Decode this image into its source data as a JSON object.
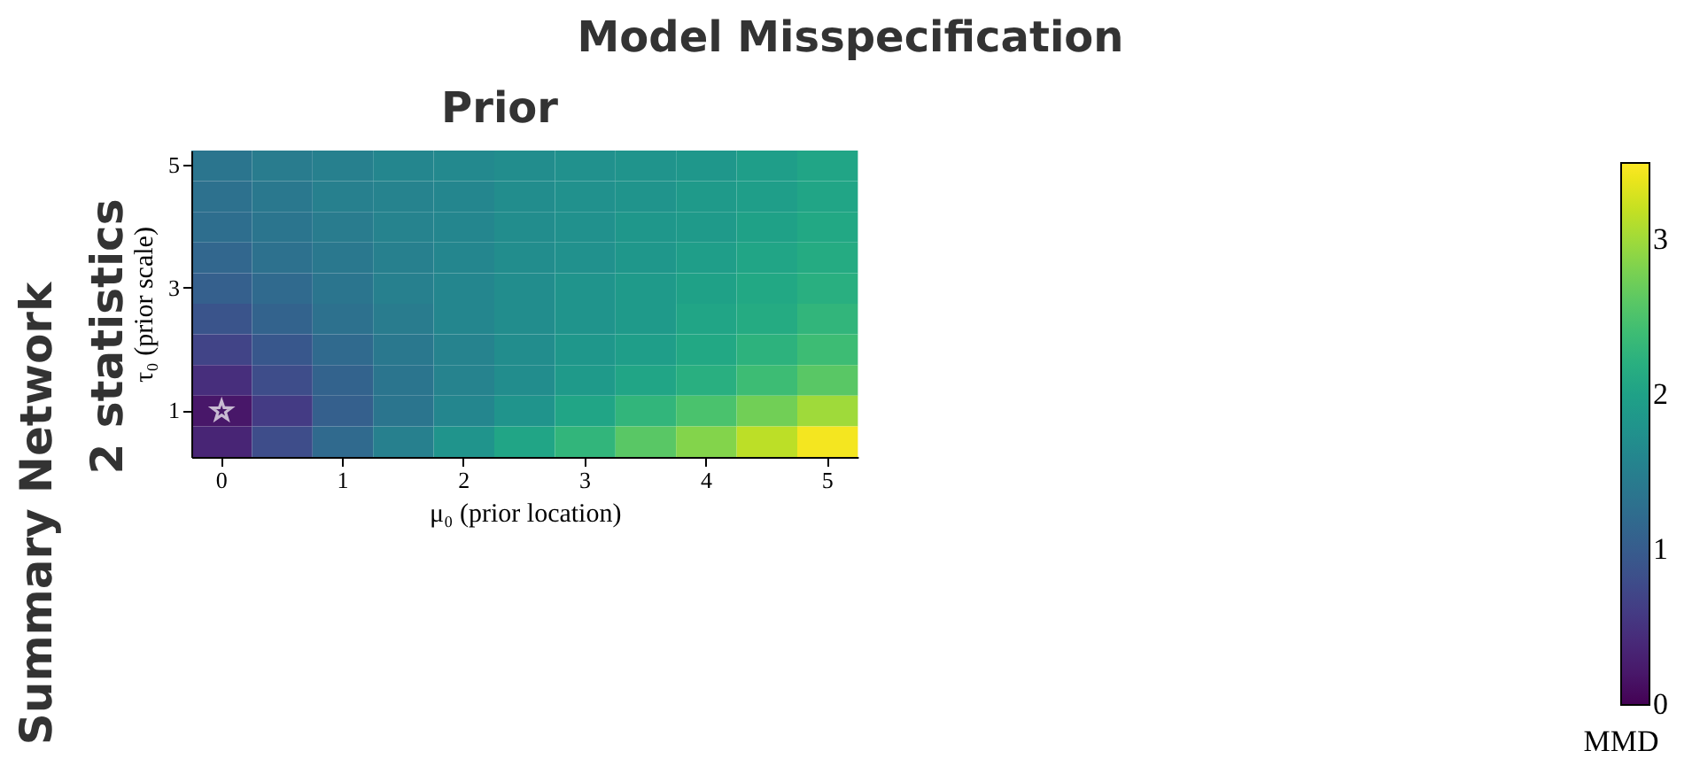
{
  "chart_data": {
    "type": "heatmap",
    "title": "Model Misspecification",
    "subtitle": "Prior",
    "xlabel": "μ₀ (prior location)",
    "ylabel": "τ₀ (prior scale)",
    "clabel": "MMD",
    "annotations": [
      "Summary Network",
      "2 statistics"
    ],
    "categories": [
      "0",
      null,
      "1",
      null,
      "2",
      null,
      "3",
      null,
      "4",
      null,
      "5"
    ],
    "y_categories": [
      "5",
      null,
      null,
      null,
      "3",
      null,
      null,
      null,
      "1",
      null
    ],
    "clim": [
      0,
      3.5
    ],
    "cticks": [
      0,
      1,
      2,
      3
    ],
    "cells": [
      [
        1.35,
        1.45,
        1.5,
        1.6,
        1.65,
        1.7,
        1.75,
        1.8,
        1.85,
        1.95,
        2.05
      ],
      [
        1.3,
        1.4,
        1.5,
        1.55,
        1.6,
        1.7,
        1.75,
        1.8,
        1.9,
        1.95,
        2.05
      ],
      [
        1.25,
        1.35,
        1.45,
        1.55,
        1.6,
        1.7,
        1.75,
        1.85,
        1.9,
        2.0,
        2.1
      ],
      [
        1.15,
        1.3,
        1.4,
        1.5,
        1.6,
        1.7,
        1.75,
        1.85,
        1.95,
        2.05,
        2.15
      ],
      [
        1.05,
        1.2,
        1.35,
        1.5,
        1.6,
        1.7,
        1.8,
        1.9,
        2.0,
        2.1,
        2.2
      ],
      [
        0.9,
        1.1,
        1.3,
        1.45,
        1.6,
        1.7,
        1.8,
        1.9,
        2.05,
        2.15,
        2.3
      ],
      [
        0.7,
        0.95,
        1.2,
        1.4,
        1.55,
        1.7,
        1.85,
        1.95,
        2.1,
        2.25,
        2.4
      ],
      [
        0.45,
        0.8,
        1.1,
        1.35,
        1.55,
        1.7,
        1.9,
        2.05,
        2.2,
        2.4,
        2.6
      ],
      [
        0.2,
        0.6,
        1.05,
        1.35,
        1.6,
        1.8,
        2.05,
        2.3,
        2.5,
        2.75,
        3.0
      ],
      [
        0.35,
        0.8,
        1.2,
        1.5,
        1.8,
        2.05,
        2.3,
        2.6,
        2.85,
        3.15,
        3.45
      ]
    ]
  }
}
